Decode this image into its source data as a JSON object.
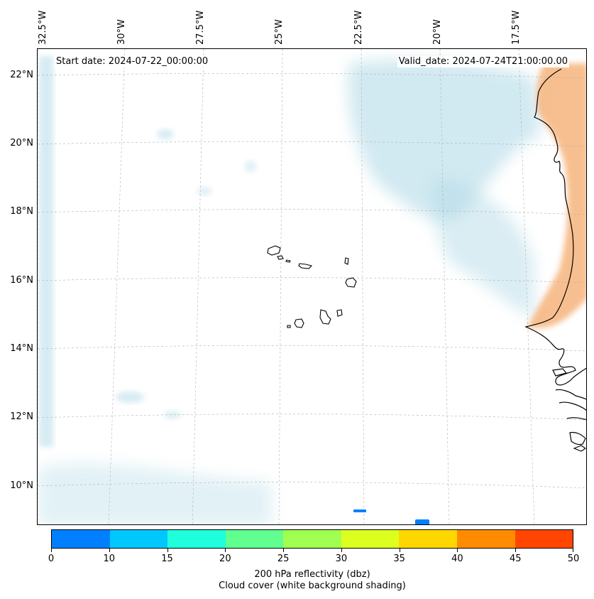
{
  "header": {
    "start_date": "Start date: 2024-07-22_00:00:00",
    "valid_date": "Valid_date: 2024-07-24T21:00:00.00"
  },
  "map": {
    "lat_labels": [
      "22°N",
      "20°N",
      "18°N",
      "16°N",
      "14°N",
      "12°N",
      "10°N"
    ],
    "lon_labels": [
      "32.5°W",
      "30°W",
      "27.5°W",
      "25°W",
      "22.5°W",
      "20°W",
      "17.5°W"
    ],
    "colors": {
      "coast": "#000000",
      "gridline": "#b0b0b0",
      "cloud_shading": "#add8e6",
      "land_warm": "#f4a460"
    }
  },
  "colorbar": {
    "ticks": [
      "0",
      "10",
      "15",
      "20",
      "25",
      "30",
      "35",
      "40",
      "45",
      "50"
    ],
    "colors": [
      "#0080ff",
      "#00c8ff",
      "#20ffdc",
      "#60ff90",
      "#a0ff50",
      "#dcff20",
      "#ffd700",
      "#ff8c00",
      "#ff4500"
    ],
    "label_line1": "200 hPa reflectivity (dbz)",
    "label_line2": "Cloud cover (white background shading)"
  }
}
